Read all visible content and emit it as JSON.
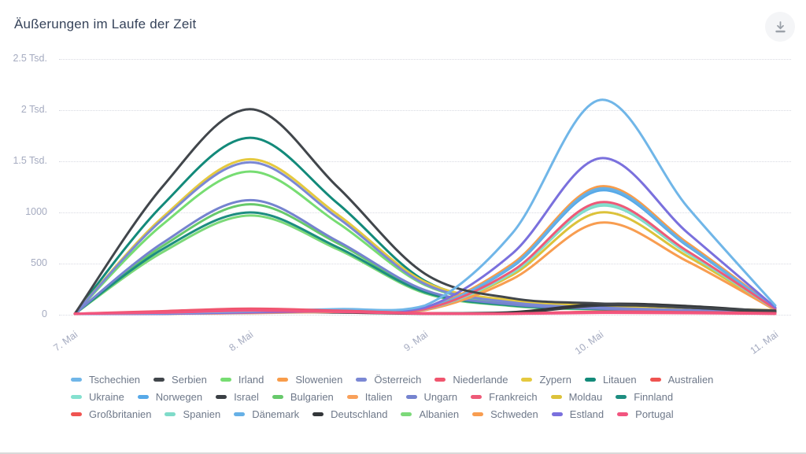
{
  "header": {
    "title": "Äußerungen im Laufe der Zeit",
    "download_icon": "download-icon"
  },
  "chart_data": {
    "type": "line",
    "title": "Äußerungen im Laufe der Zeit",
    "xlabel": "",
    "ylabel": "",
    "x_axis": {
      "tick_labels": [
        "7. Mai",
        "8. Mai",
        "9. Mai",
        "10. Mai",
        "11. Mai"
      ],
      "tick_days": [
        7,
        8,
        9,
        10,
        11
      ]
    },
    "y_axis": {
      "tick_labels": [
        "0",
        "500",
        "1000",
        "1.5 Tsd.",
        "2 Tsd.",
        "2.5 Tsd."
      ],
      "tick_values": [
        0,
        500,
        1000,
        1500,
        2000,
        2500
      ],
      "ylim": [
        0,
        2500
      ]
    },
    "grid": "dotted-horizontal",
    "legend_position": "bottom",
    "sample_x": [
      7,
      7.5,
      8,
      8.5,
      9,
      9.5,
      10,
      10.5,
      11
    ],
    "series": [
      {
        "name": "Albanien",
        "color": "#7cd979",
        "values": [
          0,
          610,
          970,
          640,
          210,
          85,
          50,
          32,
          25
        ]
      },
      {
        "name": "Bulgarien",
        "color": "#67c96b",
        "values": [
          0,
          670,
          1080,
          700,
          230,
          95,
          55,
          35,
          28
        ]
      },
      {
        "name": "Irland",
        "color": "#77dd72",
        "values": [
          0,
          880,
          1400,
          900,
          290,
          110,
          65,
          40,
          30
        ]
      },
      {
        "name": "Finnland",
        "color": "#1d8d80",
        "values": [
          0,
          640,
          1000,
          660,
          220,
          90,
          55,
          35,
          28
        ]
      },
      {
        "name": "Litauen",
        "color": "#138a7a",
        "values": [
          0,
          1070,
          1730,
          1090,
          330,
          130,
          80,
          50,
          40
        ]
      },
      {
        "name": "Moldau",
        "color": "#dcc23a",
        "values": [
          3,
          8,
          18,
          30,
          50,
          390,
          1000,
          570,
          50
        ]
      },
      {
        "name": "Zypern",
        "color": "#e5c93f",
        "values": [
          0,
          950,
          1520,
          980,
          320,
          140,
          90,
          60,
          45
        ]
      },
      {
        "name": "Ungarn",
        "color": "#7583cf",
        "values": [
          0,
          700,
          1120,
          720,
          240,
          100,
          60,
          40,
          30
        ]
      },
      {
        "name": "Österreich",
        "color": "#7b88d4",
        "values": [
          0,
          930,
          1490,
          950,
          300,
          120,
          70,
          45,
          35
        ]
      },
      {
        "name": "Israel",
        "color": "#3a3f44",
        "values": [
          1,
          15,
          30,
          22,
          10,
          15,
          90,
          70,
          20
        ]
      },
      {
        "name": "Deutschland",
        "color": "#333639",
        "values": [
          2,
          15,
          30,
          25,
          15,
          25,
          105,
          85,
          30
        ]
      },
      {
        "name": "Schweden",
        "color": "#f89d50",
        "values": [
          2,
          6,
          15,
          28,
          45,
          350,
          900,
          520,
          45
        ]
      },
      {
        "name": "Italien",
        "color": "#f9a05a",
        "values": [
          3,
          10,
          24,
          40,
          62,
          490,
          1240,
          690,
          62
        ]
      },
      {
        "name": "Slowenien",
        "color": "#f89c4a",
        "values": [
          3,
          10,
          25,
          40,
          65,
          500,
          1255,
          700,
          65
        ]
      },
      {
        "name": "Spanien",
        "color": "#7fdbc9",
        "values": [
          3,
          8,
          18,
          32,
          52,
          410,
          1065,
          600,
          52
        ]
      },
      {
        "name": "Ukraine",
        "color": "#84e0cf",
        "values": [
          3,
          8,
          20,
          35,
          55,
          420,
          1080,
          610,
          55
        ]
      },
      {
        "name": "Norwegen",
        "color": "#57a9e8",
        "values": [
          3,
          8,
          22,
          38,
          58,
          470,
          1215,
          670,
          58
        ]
      },
      {
        "name": "Dänemark",
        "color": "#66b0e6",
        "values": [
          3,
          10,
          25,
          40,
          60,
          480,
          1235,
          680,
          60
        ]
      },
      {
        "name": "Frankreich",
        "color": "#ee5a78",
        "values": [
          3,
          8,
          20,
          35,
          55,
          430,
          1100,
          620,
          55
        ]
      },
      {
        "name": "Estland",
        "color": "#7a70dd",
        "values": [
          3,
          10,
          25,
          40,
          70,
          600,
          1530,
          800,
          70
        ]
      },
      {
        "name": "Serbien",
        "color": "#41464b",
        "values": [
          0,
          1250,
          2010,
          1250,
          400,
          160,
          110,
          70,
          40
        ]
      },
      {
        "name": "Tschechien",
        "color": "#70b6e8",
        "values": [
          5,
          15,
          35,
          55,
          90,
          800,
          2100,
          1050,
          90
        ]
      },
      {
        "name": "Australien",
        "color": "#ef5350",
        "values": [
          1,
          25,
          45,
          30,
          12,
          10,
          22,
          18,
          10
        ]
      },
      {
        "name": "Großbritanien",
        "color": "#f05451",
        "values": [
          2,
          30,
          55,
          38,
          14,
          12,
          28,
          22,
          12
        ]
      },
      {
        "name": "Niederlande",
        "color": "#f0556e",
        "values": [
          2,
          35,
          60,
          40,
          15,
          12,
          30,
          25,
          15
        ]
      },
      {
        "name": "Portugal",
        "color": "#f2557f",
        "values": [
          1,
          20,
          40,
          28,
          10,
          8,
          18,
          15,
          8
        ]
      }
    ]
  },
  "legend": {
    "rows": [
      [
        "Tschechien",
        "Serbien",
        "Irland",
        "Slowenien",
        "Österreich",
        "Niederlande",
        "Zypern",
        "Litauen",
        "Australien"
      ],
      [
        "Ukraine",
        "Norwegen",
        "Israel",
        "Bulgarien",
        "Italien",
        "Ungarn",
        "Frankreich",
        "Moldau",
        "Finnland"
      ],
      [
        "Großbritanien",
        "Spanien",
        "Dänemark",
        "Deutschland",
        "Albanien",
        "Schweden",
        "Estland",
        "Portugal"
      ]
    ]
  }
}
